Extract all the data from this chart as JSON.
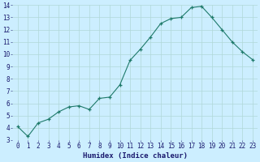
{
  "x": [
    0,
    1,
    2,
    3,
    4,
    5,
    6,
    7,
    8,
    9,
    10,
    11,
    12,
    13,
    14,
    15,
    16,
    17,
    18,
    19,
    20,
    21,
    22,
    23
  ],
  "y": [
    4.1,
    3.3,
    4.4,
    4.7,
    5.3,
    5.7,
    5.8,
    5.5,
    6.4,
    6.5,
    7.5,
    9.5,
    10.4,
    11.4,
    12.5,
    12.9,
    13.0,
    13.8,
    13.9,
    13.0,
    12.0,
    11.0,
    10.2,
    9.55
  ],
  "xlabel": "Humidex (Indice chaleur)",
  "ylim": [
    3,
    14
  ],
  "xlim": [
    -0.5,
    23.5
  ],
  "yticks": [
    3,
    4,
    5,
    6,
    7,
    8,
    9,
    10,
    11,
    12,
    13,
    14
  ],
  "xticks": [
    0,
    1,
    2,
    3,
    4,
    5,
    6,
    7,
    8,
    9,
    10,
    11,
    12,
    13,
    14,
    15,
    16,
    17,
    18,
    19,
    20,
    21,
    22,
    23
  ],
  "line_color": "#1e7a6a",
  "bg_color": "#cceeff",
  "grid_color": "#b0d8d8",
  "xlabel_color": "#1a1a6e",
  "tick_fontsize": 5.5,
  "xlabel_fontsize": 6.5
}
